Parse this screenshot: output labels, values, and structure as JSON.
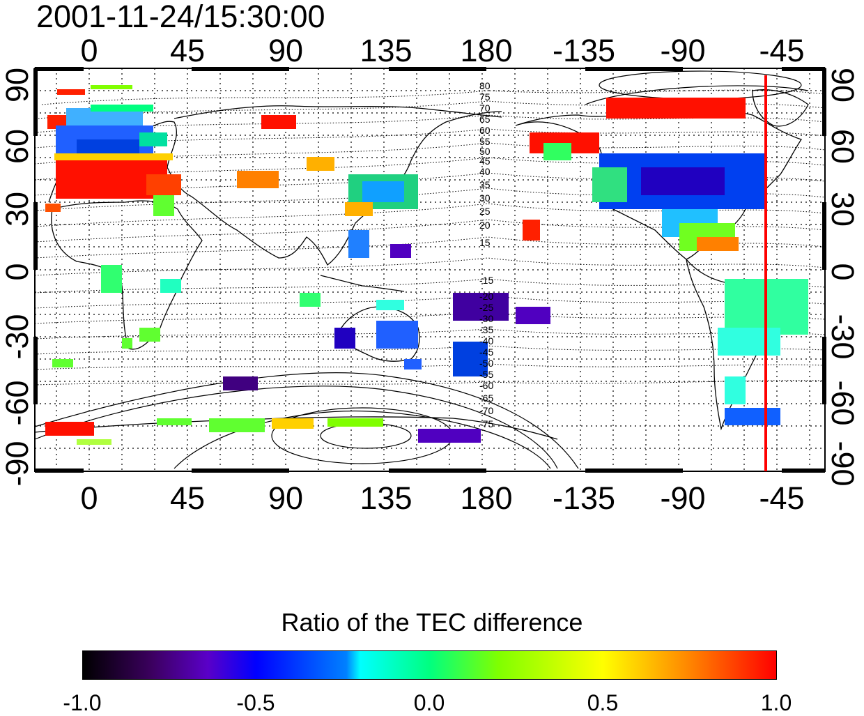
{
  "title": "2001-11-24/15:30:00",
  "top_lon_labels": [
    "0",
    "45",
    "90",
    "135",
    "180",
    "-135",
    "-90",
    "-45"
  ],
  "bottom_lon_labels": [
    "0",
    "45",
    "90",
    "135",
    "180",
    "-135",
    "-90",
    "-45"
  ],
  "left_lat_labels": [
    "90",
    "60",
    "30",
    "0",
    "-30",
    "-60",
    "-90"
  ],
  "right_lat_labels": [
    "90",
    "60",
    "30",
    "0",
    "-30",
    "-60",
    "-90"
  ],
  "magnetic_latitude_labels": [
    "80",
    "75",
    "70",
    "65",
    "60",
    "55",
    "50",
    "45",
    "40",
    "35",
    "30",
    "25",
    "20",
    "15",
    "-15",
    "-20",
    "-25",
    "-30",
    "-35",
    "-40",
    "-45",
    "-50",
    "-55",
    "-60",
    "-65",
    "-70",
    "-75"
  ],
  "marker_line": {
    "longitude": "-50",
    "color": "#ff0000"
  },
  "colorbar": {
    "title": "Ratio of the TEC difference",
    "labels": [
      "-1.0",
      "-0.5",
      "0.0",
      "0.5",
      "1.0"
    ],
    "min": -1.0,
    "max": 1.0
  }
}
